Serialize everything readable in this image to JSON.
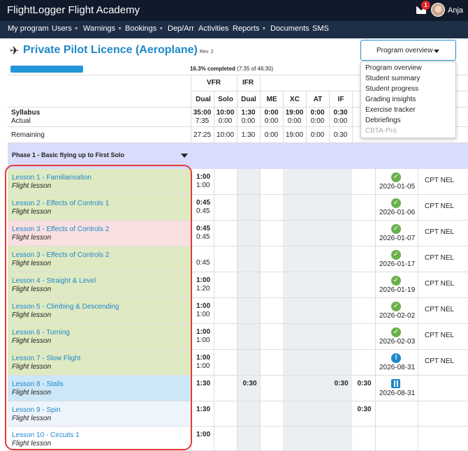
{
  "app": {
    "title": "FlightLogger Flight Academy",
    "notifications": "1",
    "user": "Anja"
  },
  "nav": [
    "My program",
    "Users",
    "Warnings",
    "Bookings",
    "Dep/Arr",
    "Activities",
    "Reports",
    "Documents",
    "SMS"
  ],
  "program": {
    "title": "Private Pilot Licence (Aeroplane)",
    "rev": "Rev. 2",
    "progress_label": "16.3% completed",
    "progress_detail": "(7:35 of 46:30)",
    "progress": 0.163
  },
  "dropdown": {
    "label": "Program overview",
    "items": [
      "Program overview",
      "Student summary",
      "Student progress",
      "Grading insights",
      "Exercise tracker",
      "Debriefings",
      "CBTA-Pro"
    ]
  },
  "table": {
    "group_headers": [
      "VFR",
      "IFR"
    ],
    "headers": [
      "Dual",
      "Solo",
      "Dual",
      "ME",
      "XC",
      "AT",
      "IF"
    ],
    "syllabus_label": "Syllabus",
    "actual_label": "Actual",
    "remaining_label": "Remaining",
    "syllabus": [
      "35:00",
      "10:00",
      "1:30",
      "0:00",
      "19:00",
      "0:00",
      "0:30"
    ],
    "actual": [
      "7:35",
      "0:00",
      "0:00",
      "0:00",
      "0:00",
      "0:00",
      "0:00"
    ],
    "remaining": [
      "27:25",
      "10:00",
      "1:30",
      "0:00",
      "19:00",
      "0:00",
      "0:30"
    ],
    "phase": "Phase 1 - Basic flying up to First Solo"
  },
  "lessons": [
    {
      "name": "Lesson 1 - Familiarisation",
      "sub": "Flight lesson",
      "t1": "1:00",
      "t2": "1:00",
      "date": "2026-01-05",
      "instr": "CPT NEL",
      "status": "done",
      "color": "#dfe9c2"
    },
    {
      "name": "Lesson 2 - Effects of Controls 1",
      "sub": "Flight lesson",
      "t1": "0:45",
      "t2": "0:45",
      "date": "2026-01-06",
      "instr": "CPT NEL",
      "status": "done",
      "color": "#dfe9c2"
    },
    {
      "name": "Lesson 3 - Effects of Controls 2",
      "sub": "Flight lesson",
      "t1": "0:45",
      "t2": "0:45",
      "date": "2026-01-07",
      "instr": "CPT NEL",
      "status": "done",
      "color": "#f9dfe0"
    },
    {
      "name": "Lesson 3 - Effects of Controls 2",
      "sub": "Flight lesson",
      "t1": "",
      "t2": "0:45",
      "date": "2026-01-17",
      "instr": "CPT NEL",
      "status": "done",
      "color": "#dfe9c2"
    },
    {
      "name": "Lesson 4 - Straight & Level",
      "sub": "Flight lesson",
      "t1": "1:00",
      "t2": "1:20",
      "date": "2026-01-19",
      "instr": "CPT NEL",
      "status": "done",
      "color": "#dfe9c2"
    },
    {
      "name": "Lesson 5 - Climbing & Descending",
      "sub": "Flight lesson",
      "t1": "1:00",
      "t2": "1:00",
      "date": "2026-02-02",
      "instr": "CPT NEL",
      "status": "done",
      "color": "#dfe9c2"
    },
    {
      "name": "Lesson 6 - Turning",
      "sub": "Flight lesson",
      "t1": "1:00",
      "t2": "1:00",
      "date": "2026-02-03",
      "instr": "CPT NEL",
      "status": "done",
      "color": "#dfe9c2"
    },
    {
      "name": "Lesson 7 - Slow Flight",
      "sub": "Flight lesson",
      "t1": "1:00",
      "t2": "1:00",
      "date": "2026-08-31",
      "instr": "CPT NEL",
      "status": "warn",
      "color": "#dfe9c2"
    },
    {
      "name": "Lesson 8 - Stalls",
      "sub": "Flight lesson",
      "t1": "1:30",
      "t2": "",
      "ifr": "0:30",
      "if1": "0:30",
      "if2": "0:30",
      "date": "2026-08-31",
      "instr": "",
      "status": "booked",
      "color": "#cde7f8"
    },
    {
      "name": "Lesson 9 - Spin",
      "sub": "Flight lesson",
      "t1": "1:30",
      "t2": "",
      "if2": "0:30",
      "date": "",
      "instr": "",
      "status": "",
      "color": "#eef4fb"
    },
    {
      "name": "Lesson 10 - Circuits 1",
      "sub": "Flight lesson",
      "t1": "1:00",
      "t2": "",
      "date": "",
      "instr": "",
      "status": "",
      "color": "#ffffff"
    }
  ]
}
